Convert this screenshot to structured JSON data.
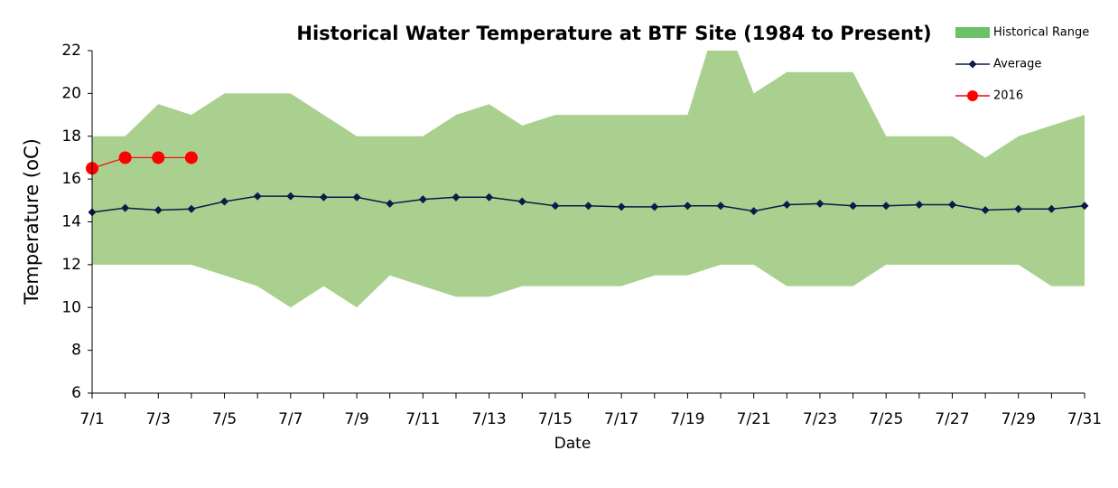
{
  "chart_data": {
    "type": "line",
    "title": "Historical Water Temperature at BTF Site (1984 to Present)",
    "x_label": "Date",
    "y_label": "Temperature (oC)",
    "categories": [
      "7/1",
      null,
      "7/3",
      null,
      "7/5",
      null,
      "7/7",
      null,
      "7/9",
      null,
      "7/11",
      null,
      "7/13",
      null,
      "7/15",
      null,
      "7/17",
      null,
      "7/19",
      null,
      "7/21",
      null,
      "7/23",
      null,
      "7/25",
      null,
      "7/27",
      null,
      "7/29",
      null,
      "7/31"
    ],
    "ylim": [
      6,
      22
    ],
    "yticks": [
      6,
      8,
      10,
      12,
      14,
      16,
      18,
      20,
      22
    ],
    "legend": "top-right",
    "series": [
      {
        "name": "Historical Range",
        "type": "range",
        "color": "#a9d08e",
        "values": [
          18,
          18,
          19.5,
          19,
          20,
          20,
          20,
          19,
          18,
          18,
          18,
          19,
          19.5,
          18.5,
          19,
          19,
          19,
          19,
          19,
          24,
          20,
          21,
          21,
          21,
          18,
          18,
          18,
          17,
          18,
          18.5,
          19
        ],
        "lower": [
          12,
          12,
          12,
          12,
          11.5,
          11,
          10,
          11,
          10,
          11.5,
          11,
          10.5,
          10.5,
          11,
          11,
          11,
          11,
          11.5,
          11.5,
          12,
          12,
          11,
          11,
          11,
          12,
          12,
          12,
          12,
          12,
          11,
          11
        ]
      },
      {
        "name": "Average",
        "type": "line",
        "marker": "diamond",
        "color": "#0d1a4a",
        "values": [
          14.45,
          14.65,
          14.55,
          14.6,
          14.95,
          15.2,
          15.2,
          15.15,
          15.15,
          14.85,
          15.05,
          15.15,
          15.15,
          14.95,
          14.75,
          14.75,
          14.7,
          14.7,
          14.75,
          14.75,
          14.5,
          14.8,
          14.85,
          14.75,
          14.75,
          14.8,
          14.8,
          14.55,
          14.6,
          14.6,
          14.75
        ]
      },
      {
        "name": "2016",
        "type": "line",
        "marker": "circle",
        "color": "#ff0000",
        "values": [
          16.5,
          17,
          17,
          17,
          null,
          null,
          null,
          null,
          null,
          null,
          null,
          null,
          null,
          null,
          null,
          null,
          null,
          null,
          null,
          null,
          null,
          null,
          null,
          null,
          null,
          null,
          null,
          null,
          null,
          null,
          null
        ]
      }
    ]
  }
}
